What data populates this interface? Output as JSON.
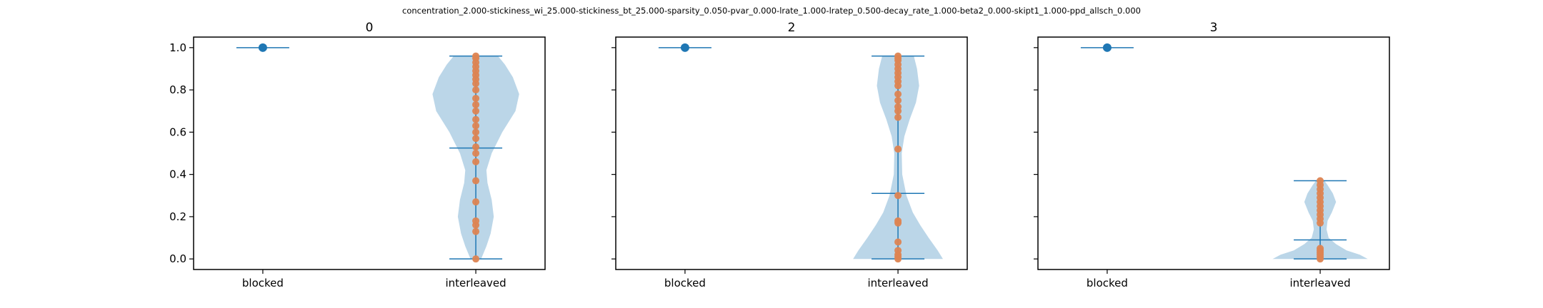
{
  "suptitle": "concentration_2.000-stickiness_wi_25.000-stickiness_bt_25.000-sparsity_0.050-pvar_0.000-lrate_1.000-lratep_0.500-decay_rate_1.000-beta2_0.000-skipt1_1.000-ppd_allsch_0.000",
  "colors": {
    "violin_fill": "#1f77b4",
    "violin_line": "#1f77b4",
    "points": "#dd8452",
    "blocked_point": "#1f77b4"
  },
  "chart_data": [
    {
      "type": "violin",
      "title": "0",
      "categories": [
        "blocked",
        "interleaved"
      ],
      "yticks": [
        "0.0",
        "0.2",
        "0.4",
        "0.6",
        "0.8",
        "1.0"
      ],
      "ylim": [
        -0.05,
        1.05
      ],
      "blocked": {
        "min": 1.0,
        "max": 1.0,
        "median": 1.0,
        "points": [
          1.0
        ]
      },
      "interleaved": {
        "min": 0.0,
        "max": 0.96,
        "median": 0.525,
        "density": [
          [
            0.0,
            0.1
          ],
          [
            0.06,
            0.2
          ],
          [
            0.12,
            0.28
          ],
          [
            0.2,
            0.34
          ],
          [
            0.28,
            0.3
          ],
          [
            0.36,
            0.22
          ],
          [
            0.42,
            0.2
          ],
          [
            0.5,
            0.3
          ],
          [
            0.6,
            0.5
          ],
          [
            0.7,
            0.75
          ],
          [
            0.78,
            0.82
          ],
          [
            0.86,
            0.7
          ],
          [
            0.92,
            0.55
          ],
          [
            0.96,
            0.42
          ]
        ],
        "points": [
          0.0,
          0.13,
          0.16,
          0.18,
          0.27,
          0.37,
          0.46,
          0.5,
          0.53,
          0.57,
          0.6,
          0.63,
          0.66,
          0.7,
          0.73,
          0.76,
          0.8,
          0.83,
          0.85,
          0.87,
          0.89,
          0.91,
          0.93,
          0.95,
          0.96
        ]
      }
    },
    {
      "type": "violin",
      "title": "2",
      "categories": [
        "blocked",
        "interleaved"
      ],
      "yticks": [
        "0.0",
        "0.2",
        "0.4",
        "0.6",
        "0.8",
        "1.0"
      ],
      "ylim": [
        -0.05,
        1.05
      ],
      "blocked": {
        "min": 1.0,
        "max": 1.0,
        "median": 1.0,
        "points": [
          1.0
        ]
      },
      "interleaved": {
        "min": 0.0,
        "max": 0.96,
        "median": 0.31,
        "density": [
          [
            0.0,
            0.85
          ],
          [
            0.04,
            0.75
          ],
          [
            0.1,
            0.58
          ],
          [
            0.16,
            0.42
          ],
          [
            0.22,
            0.28
          ],
          [
            0.3,
            0.16
          ],
          [
            0.4,
            0.08
          ],
          [
            0.5,
            0.07
          ],
          [
            0.58,
            0.12
          ],
          [
            0.66,
            0.22
          ],
          [
            0.74,
            0.34
          ],
          [
            0.82,
            0.4
          ],
          [
            0.9,
            0.36
          ],
          [
            0.96,
            0.3
          ]
        ],
        "points": [
          0.0,
          0.01,
          0.02,
          0.04,
          0.08,
          0.17,
          0.18,
          0.3,
          0.52,
          0.67,
          0.7,
          0.72,
          0.75,
          0.78,
          0.82,
          0.84,
          0.86,
          0.88,
          0.9,
          0.92,
          0.94,
          0.95,
          0.96
        ]
      }
    },
    {
      "type": "violin",
      "title": "3",
      "categories": [
        "blocked",
        "interleaved"
      ],
      "yticks": [
        "0.0",
        "0.2",
        "0.4",
        "0.6",
        "0.8",
        "1.0"
      ],
      "ylim": [
        -0.05,
        1.05
      ],
      "blocked": {
        "min": 1.0,
        "max": 1.0,
        "median": 1.0,
        "points": [
          1.0
        ]
      },
      "interleaved": {
        "min": 0.0,
        "max": 0.37,
        "median": 0.09,
        "density": [
          [
            0.0,
            0.9
          ],
          [
            0.02,
            0.75
          ],
          [
            0.04,
            0.5
          ],
          [
            0.07,
            0.3
          ],
          [
            0.1,
            0.16
          ],
          [
            0.14,
            0.12
          ],
          [
            0.18,
            0.14
          ],
          [
            0.22,
            0.22
          ],
          [
            0.27,
            0.3
          ],
          [
            0.31,
            0.24
          ],
          [
            0.35,
            0.14
          ],
          [
            0.37,
            0.08
          ]
        ],
        "points": [
          0.0,
          0.01,
          0.02,
          0.03,
          0.04,
          0.05,
          0.17,
          0.19,
          0.21,
          0.23,
          0.25,
          0.27,
          0.29,
          0.31,
          0.33,
          0.35,
          0.37
        ]
      }
    }
  ]
}
